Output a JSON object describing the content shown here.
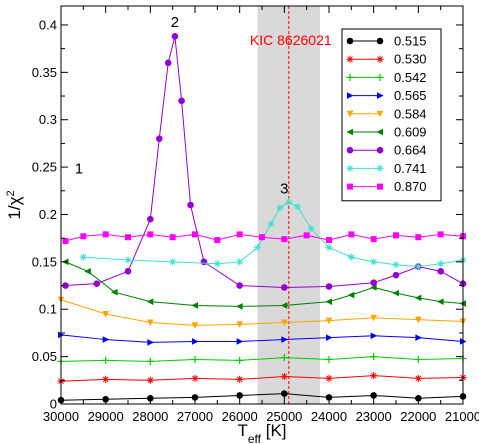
{
  "chart_data": {
    "type": "line",
    "xlabel": "T",
    "xlabel_sub": "eff",
    "xlabel_unit": " [K]",
    "ylabel": "1/χ",
    "ylabel_sup": "2",
    "xlim": [
      30000,
      21000
    ],
    "ylim": [
      0,
      0.42
    ],
    "x_ticks": [
      "30000",
      "29000",
      "28000",
      "27000",
      "26000",
      "25000",
      "24000",
      "23000",
      "22000",
      "21000"
    ],
    "y_ticks": [
      "0",
      "0.05",
      "0.1",
      "0.15",
      "0.2",
      "0.25",
      "0.3",
      "0.35",
      "0.4"
    ],
    "grid": false,
    "legend_position": "top-right",
    "shaded_band": {
      "from": 25600,
      "to": 24200,
      "color": "#d9d9d9"
    },
    "reference_line": {
      "x": 24900,
      "color": "#ff0000",
      "label": "KIC 8626021"
    },
    "annotations": [
      {
        "text": "1",
        "x": 29600,
        "y": 0.243
      },
      {
        "text": "2",
        "x": 27450,
        "y": 0.398
      },
      {
        "text": "3",
        "x": 25000,
        "y": 0.222
      }
    ],
    "series": [
      {
        "name": "0.515",
        "color": "#000000",
        "marker": "circle",
        "x": [
          30000,
          29000,
          28000,
          27000,
          26000,
          25000,
          24000,
          23000,
          22000,
          21000
        ],
        "y": [
          0.004,
          0.005,
          0.006,
          0.007,
          0.009,
          0.011,
          0.007,
          0.009,
          0.006,
          0.008
        ]
      },
      {
        "name": "0.530",
        "color": "#ff0000",
        "marker": "star",
        "x": [
          30000,
          29000,
          28000,
          27000,
          26000,
          25000,
          24000,
          23000,
          22000,
          21000
        ],
        "y": [
          0.024,
          0.026,
          0.025,
          0.027,
          0.026,
          0.029,
          0.027,
          0.03,
          0.027,
          0.028
        ]
      },
      {
        "name": "0.542",
        "color": "#00cc00",
        "marker": "plus",
        "x": [
          30000,
          29000,
          28000,
          27000,
          26000,
          25000,
          24000,
          23000,
          22000,
          21000
        ],
        "y": [
          0.045,
          0.046,
          0.045,
          0.047,
          0.046,
          0.049,
          0.047,
          0.05,
          0.047,
          0.048
        ]
      },
      {
        "name": "0.565",
        "color": "#0000ff",
        "marker": "triangle-right",
        "x": [
          30000,
          29000,
          28000,
          27000,
          26000,
          25000,
          24000,
          23000,
          22000,
          21000
        ],
        "y": [
          0.073,
          0.068,
          0.065,
          0.066,
          0.066,
          0.068,
          0.07,
          0.072,
          0.07,
          0.066
        ]
      },
      {
        "name": "0.584",
        "color": "#ffa500",
        "marker": "triangle-down",
        "x": [
          30000,
          29000,
          28000,
          27000,
          26000,
          25000,
          24000,
          23000,
          22000,
          21000
        ],
        "y": [
          0.11,
          0.095,
          0.086,
          0.083,
          0.084,
          0.086,
          0.088,
          0.091,
          0.089,
          0.087
        ]
      },
      {
        "name": "0.609",
        "color": "#008000",
        "marker": "triangle-left",
        "x": [
          29900,
          29400,
          28800,
          28000,
          27000,
          26000,
          25000,
          24000,
          23500,
          23000,
          22500,
          22000,
          21500,
          21000
        ],
        "y": [
          0.15,
          0.14,
          0.118,
          0.108,
          0.104,
          0.103,
          0.104,
          0.108,
          0.115,
          0.123,
          0.117,
          0.112,
          0.108,
          0.106
        ]
      },
      {
        "name": "0.664",
        "color": "#9400d3",
        "marker": "circle",
        "x": [
          29900,
          29200,
          28500,
          28000,
          27800,
          27600,
          27450,
          27300,
          27100,
          26800,
          26000,
          25000,
          24000,
          23000,
          22500,
          22000,
          21500,
          21000
        ],
        "y": [
          0.125,
          0.127,
          0.14,
          0.195,
          0.28,
          0.36,
          0.388,
          0.32,
          0.21,
          0.15,
          0.125,
          0.123,
          0.124,
          0.128,
          0.136,
          0.145,
          0.14,
          0.127
        ]
      },
      {
        "name": "0.741",
        "color": "#40e0d0",
        "marker": "star",
        "x": [
          29500,
          28500,
          27500,
          26500,
          26000,
          25600,
          25300,
          25100,
          24900,
          24700,
          24400,
          24000,
          23500,
          23000,
          22500,
          22000,
          21500,
          21000
        ],
        "y": [
          0.155,
          0.152,
          0.15,
          0.148,
          0.15,
          0.165,
          0.19,
          0.207,
          0.213,
          0.208,
          0.185,
          0.165,
          0.155,
          0.15,
          0.147,
          0.145,
          0.148,
          0.152
        ]
      },
      {
        "name": "0.870",
        "color": "#ff00ff",
        "marker": "square",
        "x": [
          29900,
          29500,
          29000,
          28500,
          28000,
          27500,
          27000,
          26500,
          26000,
          25500,
          25000,
          24500,
          24000,
          23500,
          23000,
          22500,
          22000,
          21500,
          21000
        ],
        "y": [
          0.172,
          0.177,
          0.179,
          0.176,
          0.179,
          0.176,
          0.179,
          0.173,
          0.179,
          0.176,
          0.174,
          0.178,
          0.173,
          0.179,
          0.174,
          0.178,
          0.176,
          0.179,
          0.177
        ]
      }
    ]
  }
}
